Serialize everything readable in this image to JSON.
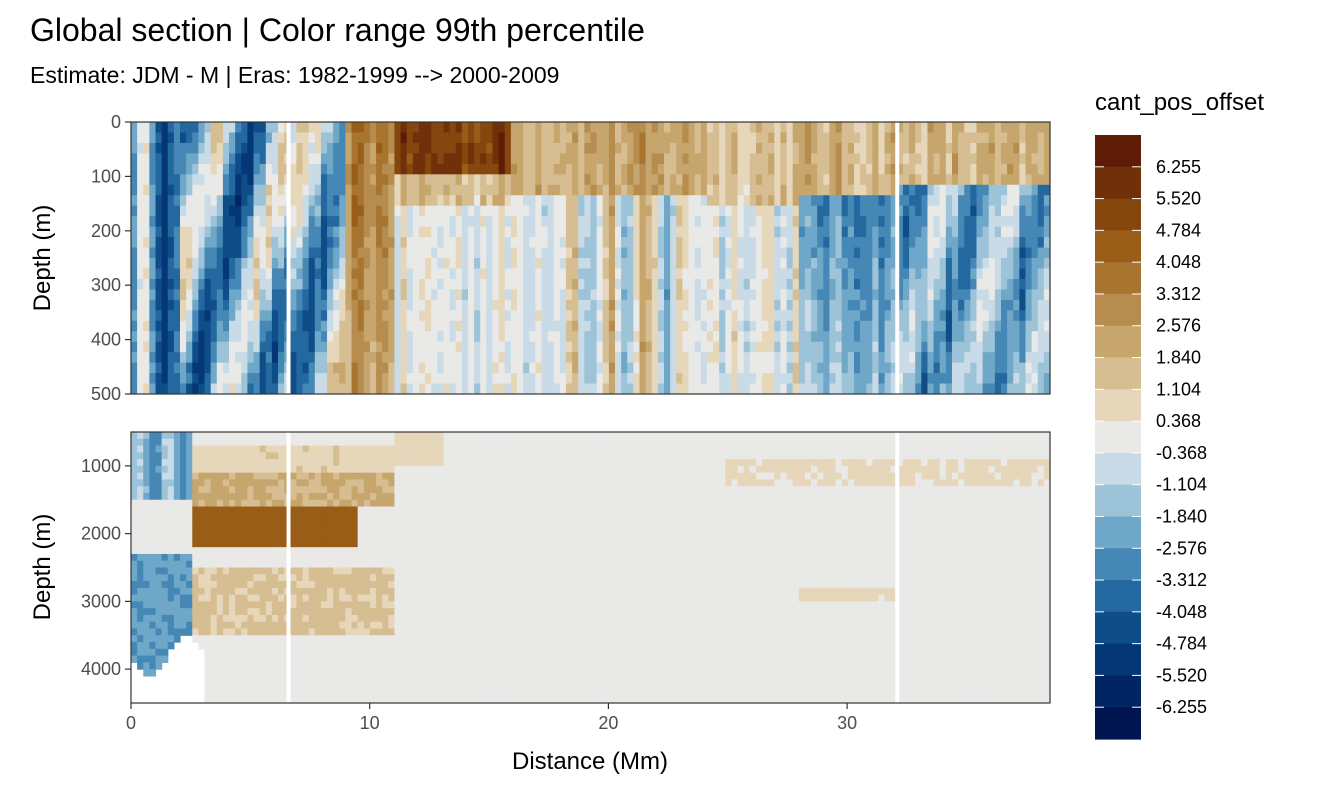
{
  "chart_data": {
    "type": "heatmap",
    "title": "Global section | Color range 99th percentile",
    "subtitle": "Estimate: JDM - M | Eras: 1982-1999 --> 2000-2009",
    "xlabel": "Distance (Mm)",
    "ylabel": "Depth (m)",
    "xlim": [
      0,
      38.5
    ],
    "x_ticks": [
      "0",
      "10",
      "20",
      "30"
    ],
    "panels": [
      {
        "ylabel": "Depth (m)",
        "ylim": [
          0,
          500
        ],
        "y_ticks": [
          "0",
          "100",
          "200",
          "300",
          "400",
          "500"
        ]
      },
      {
        "ylabel": "Depth (m)",
        "ylim": [
          500,
          4500
        ],
        "y_ticks": [
          "1000",
          "2000",
          "3000",
          "4000"
        ]
      }
    ],
    "gaps_x": [
      6.6,
      32.1
    ],
    "grid": true,
    "legend": {
      "title": "cant_pos_offset",
      "position": "right",
      "labels": [
        "6.255",
        "5.520",
        "4.784",
        "4.048",
        "3.312",
        "2.576",
        "1.840",
        "1.104",
        "0.368",
        "-0.368",
        "-1.104",
        "-1.840",
        "-2.576",
        "-3.312",
        "-4.048",
        "-4.784",
        "-5.520",
        "-6.255"
      ],
      "colors": [
        "#5e1b06",
        "#70300a",
        "#85470d",
        "#995d17",
        "#a87530",
        "#b68d4e",
        "#c6a66c",
        "#d6be92",
        "#e6d7bb",
        "#e9eae8",
        "#c8dbe7",
        "#9dc3d9",
        "#6fa7c9",
        "#4587b5",
        "#2468a0",
        "#0f4d88",
        "#053776",
        "#012463",
        "#001550"
      ]
    }
  }
}
